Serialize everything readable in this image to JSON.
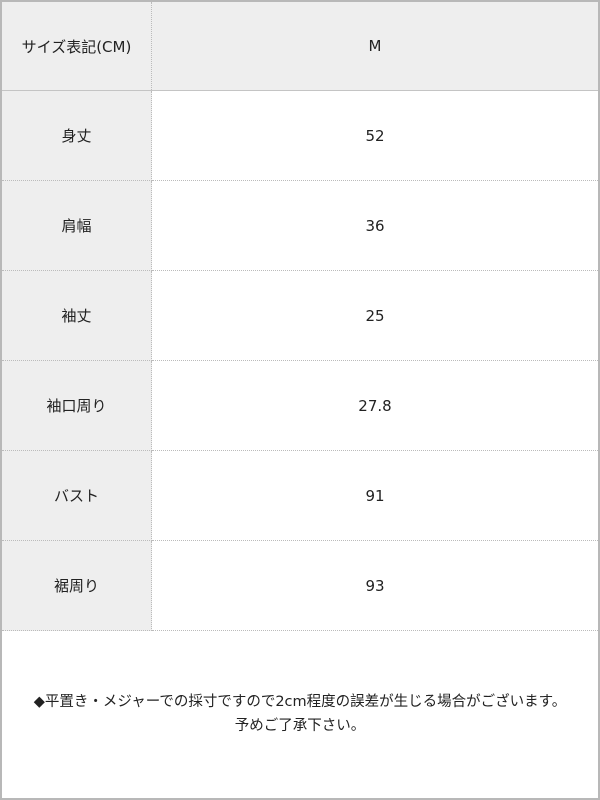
{
  "table": {
    "header": {
      "label": "サイズ表記(CM)",
      "size": "M"
    },
    "rows": [
      {
        "label": "身丈",
        "value": "52"
      },
      {
        "label": "肩幅",
        "value": "36"
      },
      {
        "label": "袖丈",
        "value": "25"
      },
      {
        "label": "袖口周り",
        "value": "27.8"
      },
      {
        "label": "バスト",
        "value": "91"
      },
      {
        "label": "裾周り",
        "value": "93"
      }
    ]
  },
  "note": {
    "line1": "◆平置き・メジャーでの採寸ですので2cm程度の誤差が生じる場合がございます。",
    "line2": "予めご了承下さい。"
  }
}
